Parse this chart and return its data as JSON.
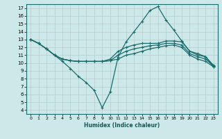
{
  "xlabel": "Humidex (Indice chaleur)",
  "bg_color": "#cce8e8",
  "grid_color": "#b0d0d0",
  "line_color": "#1a6b6b",
  "xlim": [
    -0.5,
    23.5
  ],
  "ylim": [
    3.5,
    17.5
  ],
  "xticks": [
    0,
    1,
    2,
    3,
    4,
    5,
    6,
    7,
    8,
    9,
    10,
    11,
    12,
    13,
    14,
    15,
    16,
    17,
    18,
    19,
    20,
    21,
    22,
    23
  ],
  "yticks": [
    4,
    5,
    6,
    7,
    8,
    9,
    10,
    11,
    12,
    13,
    14,
    15,
    16,
    17
  ],
  "series": [
    {
      "x": [
        0,
        1,
        2,
        3,
        4,
        5,
        6,
        7,
        8,
        9,
        10,
        11,
        12,
        13,
        14,
        15,
        16,
        17,
        18,
        19,
        20,
        21,
        22,
        23
      ],
      "y": [
        13.0,
        12.5,
        11.8,
        11.0,
        10.2,
        9.3,
        8.3,
        7.5,
        6.5,
        4.3,
        6.3,
        10.8,
        12.7,
        14.0,
        15.3,
        16.7,
        17.2,
        15.5,
        14.2,
        12.8,
        11.5,
        11.0,
        10.8,
        9.5
      ]
    },
    {
      "x": [
        0,
        1,
        2,
        3,
        4,
        5,
        6,
        7,
        8,
        9,
        10,
        11,
        12,
        13,
        14,
        15,
        16,
        17,
        18,
        19,
        20,
        21,
        22,
        23
      ],
      "y": [
        13.0,
        12.5,
        11.8,
        11.0,
        10.5,
        10.3,
        10.2,
        10.2,
        10.2,
        10.2,
        10.5,
        11.5,
        12.0,
        12.3,
        12.5,
        12.5,
        12.5,
        12.8,
        12.8,
        12.7,
        11.5,
        11.2,
        10.8,
        9.7
      ]
    },
    {
      "x": [
        0,
        1,
        2,
        3,
        4,
        5,
        6,
        7,
        8,
        9,
        10,
        11,
        12,
        13,
        14,
        15,
        16,
        17,
        18,
        19,
        20,
        21,
        22,
        23
      ],
      "y": [
        13.0,
        12.5,
        11.8,
        11.0,
        10.5,
        10.3,
        10.2,
        10.2,
        10.2,
        10.2,
        10.3,
        11.0,
        11.5,
        11.8,
        12.0,
        12.2,
        12.3,
        12.5,
        12.5,
        12.3,
        11.2,
        10.8,
        10.5,
        9.6
      ]
    },
    {
      "x": [
        0,
        1,
        2,
        3,
        4,
        5,
        6,
        7,
        8,
        9,
        10,
        11,
        12,
        13,
        14,
        15,
        16,
        17,
        18,
        19,
        20,
        21,
        22,
        23
      ],
      "y": [
        13.0,
        12.5,
        11.8,
        11.0,
        10.5,
        10.3,
        10.2,
        10.2,
        10.2,
        10.2,
        10.3,
        10.5,
        11.0,
        11.2,
        11.5,
        11.8,
        12.0,
        12.2,
        12.3,
        12.0,
        11.0,
        10.5,
        10.2,
        9.5
      ]
    }
  ]
}
